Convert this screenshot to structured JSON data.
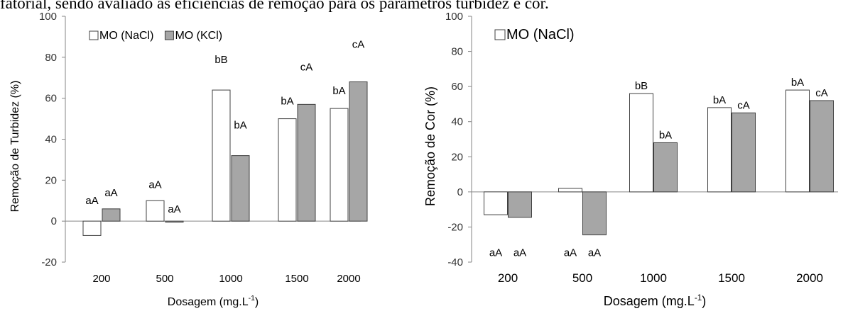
{
  "header_text": "fatorial, sendo avaliado as eficiências de remoção para os parâmetros turbidez e cor.",
  "colors": {
    "series_nacl": "#ffffff",
    "series_kcl": "#a6a6a6",
    "bar_stroke": "#404040",
    "axis": "#868686"
  },
  "chart_data": [
    {
      "type": "bar",
      "categories": [
        "200",
        "500",
        "1000",
        "1500",
        "2000"
      ],
      "xlabel": "Dosagem (mg.L",
      "xlabel_sup": "-1",
      "xlabel_end": ")",
      "ylabel": "Remoção de Turbidez (%)",
      "ylim": [
        -20,
        100
      ],
      "yticks": [
        "-20",
        "0",
        "20",
        "40",
        "60",
        "80",
        "100"
      ],
      "legend_position": "top-left",
      "series": [
        {
          "name": "MO (NaCl)",
          "values": [
            -7,
            10,
            64,
            50,
            55
          ],
          "labels": [
            "aA",
            "aA",
            "bB",
            "bA",
            "bA"
          ]
        },
        {
          "name": "MO (KCl)",
          "values": [
            6,
            -0.5,
            32,
            57,
            68
          ],
          "labels": [
            "aA",
            "aA",
            "bA",
            "cA",
            "cA"
          ]
        }
      ]
    },
    {
      "type": "bar",
      "categories": [
        "200",
        "500",
        "1000",
        "1500",
        "2000"
      ],
      "xlabel": "Dosagem (mg.L",
      "xlabel_sup": "-1",
      "xlabel_end": ")",
      "ylabel": "Remoção de Cor (%)",
      "ylim": [
        -40,
        100
      ],
      "yticks": [
        "-40",
        "-20",
        "0",
        "20",
        "40",
        "60",
        "80",
        "100"
      ],
      "legend_position": "top-left",
      "series": [
        {
          "name": "MO (NaCl)",
          "values": [
            -13,
            2,
            56,
            48,
            58
          ],
          "labels": [
            "aA",
            "aA",
            "bB",
            "bA",
            "bA"
          ]
        },
        {
          "values": [
            -14.5,
            -24.5,
            28,
            45,
            52
          ],
          "labels": [
            "aA",
            "aA",
            "bA",
            "cA",
            "cA"
          ]
        }
      ]
    }
  ]
}
